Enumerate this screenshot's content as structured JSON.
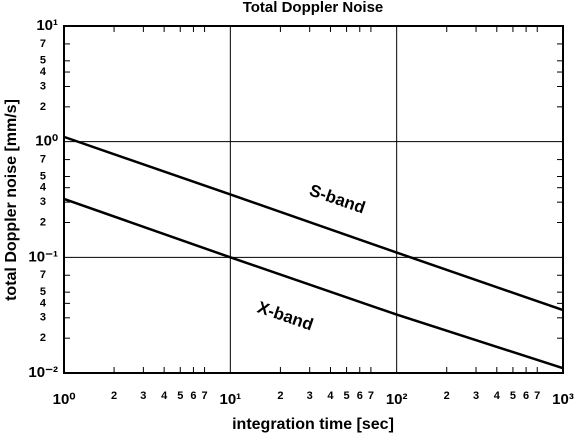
{
  "chart_data": {
    "type": "line",
    "title": "Total Doppler Noise",
    "x_label": "integration time [sec]",
    "y_label": "total Doppler noise [mm/s]",
    "x": [
      1,
      10,
      100,
      1000
    ],
    "series": [
      {
        "name": "S-band",
        "color": "#000000",
        "values": [
          1.1,
          0.35,
          0.11,
          0.035
        ]
      },
      {
        "name": "X-band",
        "color": "#000000",
        "values": [
          0.32,
          0.1,
          0.032,
          0.011
        ]
      }
    ],
    "xscale": "log",
    "yscale": "log",
    "xlim": [
      1,
      1000
    ],
    "ylim": [
      0.01,
      10
    ],
    "xticks": [
      {
        "value": 1,
        "label": "10⁰"
      },
      {
        "value": 10,
        "label": "10¹"
      },
      {
        "value": 100,
        "label": "10²"
      },
      {
        "value": 1000,
        "label": "10³"
      }
    ],
    "yticks": [
      {
        "value": 0.01,
        "label": "10⁻²"
      },
      {
        "value": 0.1,
        "label": "10⁻¹"
      },
      {
        "value": 1,
        "label": "10⁰"
      },
      {
        "value": 10,
        "label": "10¹"
      }
    ],
    "xminorticks": [
      2,
      3,
      4,
      5,
      6,
      7,
      {
        "value": 20,
        "label": "2"
      },
      {
        "value": 30,
        "label": "3"
      },
      {
        "value": 40,
        "label": "4"
      },
      {
        "value": 50,
        "label": "5"
      },
      {
        "value": 60,
        "label": "6"
      },
      {
        "value": 70,
        "label": "7"
      },
      {
        "value": 200,
        "label": "2"
      },
      {
        "value": 300,
        "label": "3"
      },
      {
        "value": 400,
        "label": "4"
      },
      {
        "value": 500,
        "label": "5"
      },
      {
        "value": 600,
        "label": "6"
      },
      {
        "value": 700,
        "label": "7"
      }
    ],
    "yminorticks": [
      {
        "value": 0.02,
        "label": "2"
      },
      {
        "value": 0.03,
        "label": "3"
      },
      {
        "value": 0.04,
        "label": "4"
      },
      {
        "value": 0.05,
        "label": "5"
      },
      {
        "value": 0.07,
        "label": "7"
      },
      {
        "value": 0.2,
        "label": "2"
      },
      {
        "value": 0.3,
        "label": "3"
      },
      {
        "value": 0.4,
        "label": "4"
      },
      {
        "value": 0.5,
        "label": "5"
      },
      {
        "value": 0.7,
        "label": "7"
      },
      2,
      3,
      4,
      5,
      7
    ],
    "grid": true
  }
}
